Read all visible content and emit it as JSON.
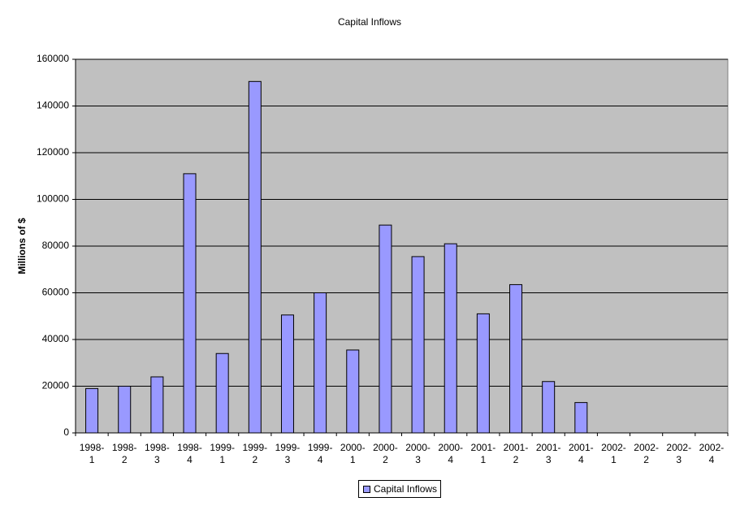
{
  "chart_data": {
    "type": "bar",
    "title": "Capital Inflows",
    "y_label": "Millions of $",
    "categories": [
      "1998-1",
      "1998-2",
      "1998-3",
      "1998-4",
      "1999-1",
      "1999-2",
      "1999-3",
      "1999-4",
      "2000-1",
      "2000-2",
      "2000-3",
      "2000-4",
      "2001-1",
      "2001-2",
      "2001-3",
      "2001-4",
      "2002-1",
      "2002-2",
      "2002-3",
      "2002-4"
    ],
    "series": [
      {
        "name": "Capital Inflows",
        "color": "#9999ff",
        "values": [
          19000,
          20000,
          24000,
          111000,
          34000,
          150500,
          50500,
          60000,
          35500,
          89000,
          75500,
          81000,
          51000,
          63500,
          22000,
          13000,
          null,
          null,
          null,
          null
        ]
      }
    ],
    "ylim": [
      0,
      160000
    ],
    "yticks": [
      0,
      20000,
      40000,
      60000,
      80000,
      100000,
      120000,
      140000,
      160000
    ],
    "grid": true,
    "plot_background": "#c0c0c0"
  }
}
